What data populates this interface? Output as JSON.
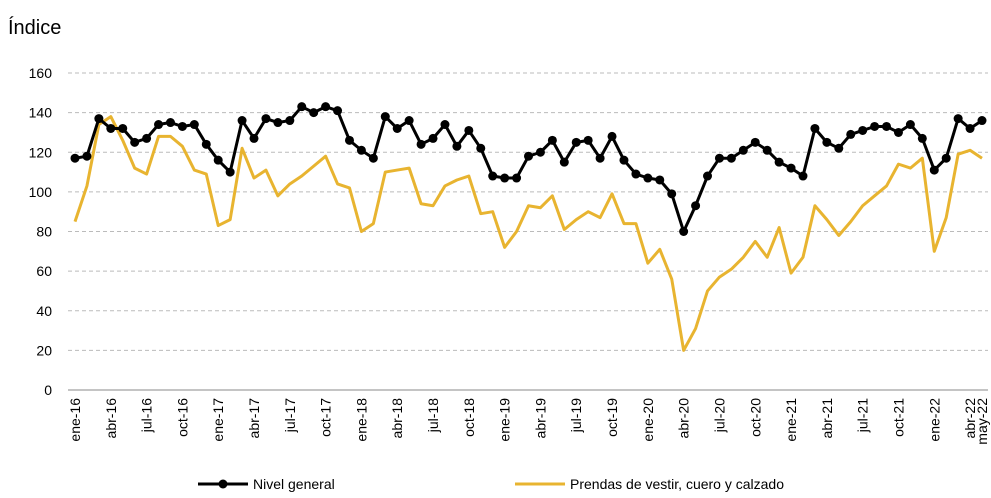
{
  "chart_data": {
    "type": "line",
    "title": "Índice",
    "categories": [
      "ene-16",
      null,
      null,
      "abr-16",
      null,
      null,
      "jul-16",
      null,
      null,
      "oct-16",
      null,
      null,
      "ene-17",
      null,
      null,
      "abr-17",
      null,
      null,
      "jul-17",
      null,
      null,
      "oct-17",
      null,
      null,
      "ene-18",
      null,
      null,
      "abr-18",
      null,
      null,
      "jul-18",
      null,
      null,
      "oct-18",
      null,
      null,
      "ene-19",
      null,
      null,
      "abr-19",
      null,
      null,
      "jul-19",
      null,
      null,
      "oct-19",
      null,
      null,
      "ene-20",
      null,
      null,
      "abr-20",
      null,
      null,
      "jul-20",
      null,
      null,
      "oct-20",
      null,
      null,
      "ene-21",
      null,
      null,
      "abr-21",
      null,
      null,
      "jul-21",
      null,
      null,
      "oct-21",
      null,
      null,
      "ene-22",
      null,
      null,
      "abr-22",
      "may-22"
    ],
    "series": [
      {
        "name": "Nivel general",
        "color": "#000000",
        "markers": true,
        "values": [
          117,
          118,
          137,
          132,
          132,
          125,
          127,
          134,
          135,
          133,
          134,
          124,
          116,
          110,
          136,
          127,
          137,
          135,
          136,
          143,
          140,
          143,
          141,
          126,
          121,
          117,
          138,
          132,
          136,
          124,
          127,
          134,
          123,
          131,
          122,
          108,
          107,
          107,
          118,
          120,
          126,
          115,
          125,
          126,
          117,
          128,
          116,
          109,
          107,
          106,
          99,
          80,
          93,
          108,
          117,
          117,
          121,
          125,
          121,
          115,
          112,
          108,
          132,
          125,
          122,
          129,
          131,
          133,
          133,
          130,
          134,
          127,
          111,
          117,
          137,
          132,
          136
        ]
      },
      {
        "name": "Prendas de vestir, cuero y calzado",
        "color": "#e8b430",
        "markers": false,
        "values": [
          85,
          103,
          134,
          138,
          126,
          112,
          109,
          128,
          128,
          123,
          111,
          109,
          83,
          86,
          122,
          107,
          111,
          98,
          104,
          108,
          113,
          118,
          104,
          102,
          80,
          84,
          110,
          111,
          112,
          94,
          93,
          103,
          106,
          108,
          89,
          90,
          72,
          80,
          93,
          92,
          98,
          81,
          86,
          90,
          87,
          99,
          84,
          84,
          64,
          71,
          56,
          20,
          31,
          50,
          57,
          61,
          67,
          75,
          67,
          82,
          59,
          67,
          93,
          86,
          78,
          85,
          93,
          98,
          103,
          114,
          112,
          117,
          70,
          87,
          119,
          121,
          117
        ]
      }
    ],
    "ylim": [
      0,
      160
    ],
    "yticks": [
      0,
      20,
      40,
      60,
      80,
      100,
      120,
      140,
      160
    ],
    "grid": true
  }
}
